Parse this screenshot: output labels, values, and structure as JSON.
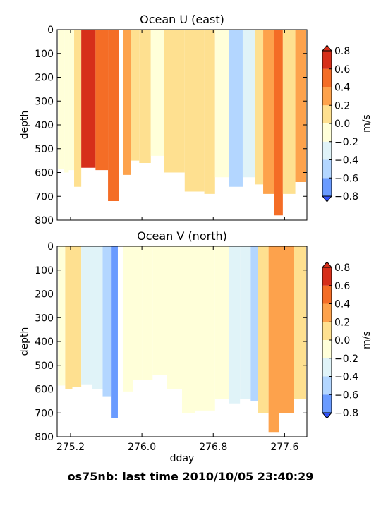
{
  "footer": "os75nb: last time 2010/10/05 23:40:29",
  "chart_data": [
    {
      "type": "heatmap",
      "title": "Ocean U (east)",
      "xlabel": "",
      "ylabel": "depth",
      "xlim": [
        275.05,
        277.85
      ],
      "ylim": [
        800,
        0
      ],
      "xticks": [],
      "xtick_labels": [],
      "yticks": [
        0,
        100,
        200,
        300,
        400,
        500,
        600,
        700,
        800
      ],
      "colorbar": {
        "label": "m/s",
        "levels": [
          -0.8,
          -0.6,
          -0.4,
          -0.2,
          0.0,
          0.2,
          0.4,
          0.6,
          0.8
        ],
        "tick_labels": [
          "−0.8",
          "−0.6",
          "−0.4",
          "−0.2",
          "0.0",
          "0.2",
          "0.4",
          "0.6",
          "0.8"
        ],
        "colors": [
          "#3050f8",
          "#6a9bff",
          "#b3d6ff",
          "#e0f3f8",
          "#ffffd9",
          "#fee090",
          "#fda24c",
          "#f46d26",
          "#d62f1a"
        ]
      },
      "columns": [
        {
          "x0": 275.06,
          "x1": 275.13,
          "max_depth": 585,
          "v": -0.1
        },
        {
          "x0": 275.13,
          "x1": 275.18,
          "max_depth": 600,
          "v": -0.2
        },
        {
          "x0": 275.18,
          "x1": 275.24,
          "max_depth": 590,
          "v": -0.15
        },
        {
          "x0": 275.24,
          "x1": 275.32,
          "max_depth": 660,
          "v": 0.1
        },
        {
          "x0": 275.32,
          "x1": 275.48,
          "max_depth": 580,
          "v": 0.7
        },
        {
          "x0": 275.48,
          "x1": 275.62,
          "max_depth": 590,
          "v": 0.55
        },
        {
          "x0": 275.62,
          "x1": 275.74,
          "max_depth": 720,
          "v": 0.45
        },
        {
          "x0": 275.79,
          "x1": 275.88,
          "max_depth": 610,
          "v": 0.3
        },
        {
          "x0": 275.88,
          "x1": 275.97,
          "max_depth": 550,
          "v": 0.05
        },
        {
          "x0": 275.97,
          "x1": 276.1,
          "max_depth": 560,
          "v": 0.1
        },
        {
          "x0": 276.1,
          "x1": 276.25,
          "max_depth": 530,
          "v": -0.05
        },
        {
          "x0": 276.25,
          "x1": 276.48,
          "max_depth": 600,
          "v": 0.05
        },
        {
          "x0": 276.48,
          "x1": 276.7,
          "max_depth": 680,
          "v": 0.1
        },
        {
          "x0": 276.7,
          "x1": 276.82,
          "max_depth": 690,
          "v": 0.05
        },
        {
          "x0": 276.82,
          "x1": 276.98,
          "max_depth": 620,
          "v": -0.1
        },
        {
          "x0": 276.98,
          "x1": 277.13,
          "max_depth": 660,
          "v": -0.5
        },
        {
          "x0": 277.13,
          "x1": 277.27,
          "max_depth": 620,
          "v": -0.3
        },
        {
          "x0": 277.27,
          "x1": 277.36,
          "max_depth": 650,
          "v": 0.1
        },
        {
          "x0": 277.36,
          "x1": 277.48,
          "max_depth": 690,
          "v": 0.35
        },
        {
          "x0": 277.48,
          "x1": 277.58,
          "max_depth": 780,
          "v": 0.45
        },
        {
          "x0": 277.58,
          "x1": 277.72,
          "max_depth": 690,
          "v": 0.15
        },
        {
          "x0": 277.72,
          "x1": 277.84,
          "max_depth": 640,
          "v": 0.25
        }
      ]
    },
    {
      "type": "heatmap",
      "title": "Ocean V (north)",
      "xlabel": "dday",
      "ylabel": "depth",
      "xlim": [
        275.05,
        277.85
      ],
      "ylim": [
        800,
        0
      ],
      "xticks": [
        275.2,
        276.0,
        276.8,
        277.6
      ],
      "xtick_labels": [
        "275.2",
        "276.0",
        "276.8",
        "277.6"
      ],
      "yticks": [
        0,
        100,
        200,
        300,
        400,
        500,
        600,
        700,
        800
      ],
      "colorbar": {
        "label": "m/s",
        "levels": [
          -0.8,
          -0.6,
          -0.4,
          -0.2,
          0.0,
          0.2,
          0.4,
          0.6,
          0.8
        ],
        "tick_labels": [
          "−0.8",
          "−0.6",
          "−0.4",
          "−0.2",
          "0.0",
          "0.2",
          "0.4",
          "0.6",
          "0.8"
        ],
        "colors": [
          "#3050f8",
          "#6a9bff",
          "#b3d6ff",
          "#e0f3f8",
          "#ffffd9",
          "#fee090",
          "#fda24c",
          "#f46d26",
          "#d62f1a"
        ]
      },
      "columns": [
        {
          "x0": 275.06,
          "x1": 275.14,
          "max_depth": 585,
          "v": -0.1
        },
        {
          "x0": 275.14,
          "x1": 275.22,
          "max_depth": 600,
          "v": 0.05
        },
        {
          "x0": 275.22,
          "x1": 275.32,
          "max_depth": 590,
          "v": 0.1
        },
        {
          "x0": 275.32,
          "x1": 275.44,
          "max_depth": 580,
          "v": -0.3
        },
        {
          "x0": 275.44,
          "x1": 275.56,
          "max_depth": 600,
          "v": -0.35
        },
        {
          "x0": 275.56,
          "x1": 275.66,
          "max_depth": 630,
          "v": -0.6
        },
        {
          "x0": 275.66,
          "x1": 275.73,
          "max_depth": 720,
          "v": -0.65
        },
        {
          "x0": 275.79,
          "x1": 275.9,
          "max_depth": 610,
          "v": -0.1
        },
        {
          "x0": 275.9,
          "x1": 276.0,
          "max_depth": 560,
          "v": -0.05
        },
        {
          "x0": 276.0,
          "x1": 276.12,
          "max_depth": 560,
          "v": -0.15
        },
        {
          "x0": 276.12,
          "x1": 276.28,
          "max_depth": 540,
          "v": -0.05
        },
        {
          "x0": 276.28,
          "x1": 276.45,
          "max_depth": 600,
          "v": -0.1
        },
        {
          "x0": 276.45,
          "x1": 276.6,
          "max_depth": 700,
          "v": -0.05
        },
        {
          "x0": 276.6,
          "x1": 276.82,
          "max_depth": 690,
          "v": -0.2
        },
        {
          "x0": 276.82,
          "x1": 276.98,
          "max_depth": 640,
          "v": -0.1
        },
        {
          "x0": 276.98,
          "x1": 277.1,
          "max_depth": 660,
          "v": -0.3
        },
        {
          "x0": 277.1,
          "x1": 277.22,
          "max_depth": 640,
          "v": -0.25
        },
        {
          "x0": 277.22,
          "x1": 277.3,
          "max_depth": 650,
          "v": -0.5
        },
        {
          "x0": 277.3,
          "x1": 277.42,
          "max_depth": 700,
          "v": 0.1
        },
        {
          "x0": 277.42,
          "x1": 277.54,
          "max_depth": 780,
          "v": 0.25
        },
        {
          "x0": 277.54,
          "x1": 277.7,
          "max_depth": 700,
          "v": 0.3
        },
        {
          "x0": 277.7,
          "x1": 277.84,
          "max_depth": 640,
          "v": 0.1
        }
      ]
    }
  ]
}
